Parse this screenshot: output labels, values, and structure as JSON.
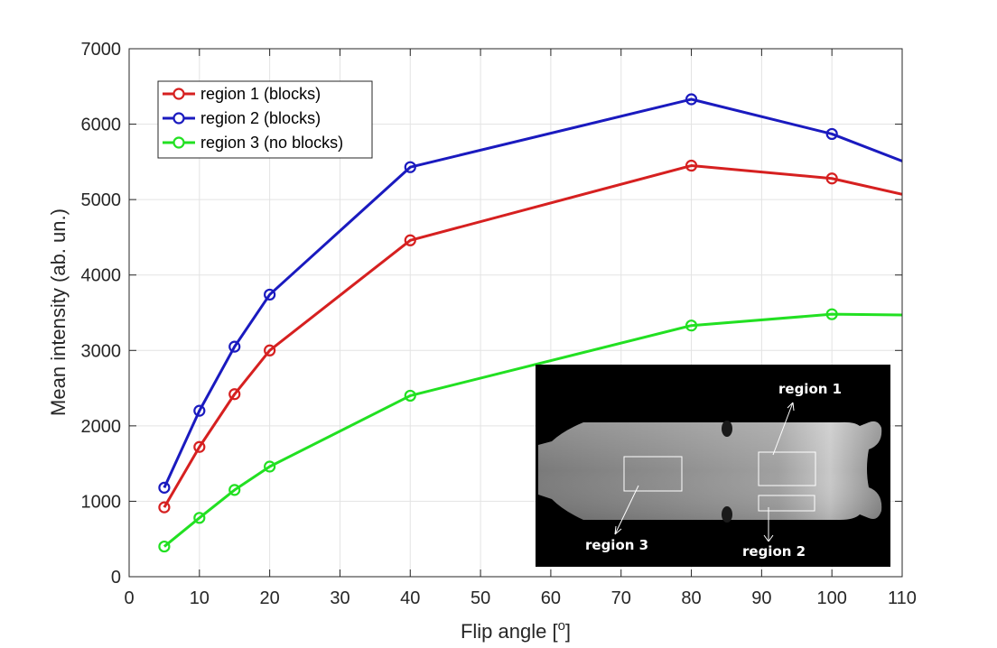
{
  "chart_data": {
    "type": "line",
    "xlabel_main": "Flip angle [",
    "xlabel_sup": "o",
    "xlabel_end": "]",
    "ylabel": "Mean intensity (ab. un.)",
    "xlim": [
      0,
      110
    ],
    "ylim": [
      0,
      7000
    ],
    "xticks": [
      0,
      10,
      20,
      30,
      40,
      50,
      60,
      70,
      80,
      90,
      100,
      110
    ],
    "yticks": [
      0,
      1000,
      2000,
      3000,
      4000,
      5000,
      6000,
      7000
    ],
    "grid": true,
    "legend_position": "top-left",
    "series": [
      {
        "name": "region 1 (blocks)",
        "color": "#d62020",
        "x": [
          5,
          10,
          15,
          20,
          40,
          80,
          100,
          110
        ],
        "y": [
          920,
          1720,
          2420,
          3000,
          4460,
          5450,
          5280,
          5070
        ],
        "markers": [
          true,
          true,
          true,
          true,
          true,
          true,
          true,
          false
        ]
      },
      {
        "name": "region 2 (blocks)",
        "color": "#1a1abf",
        "x": [
          5,
          10,
          15,
          20,
          40,
          80,
          100,
          110
        ],
        "y": [
          1180,
          2200,
          3050,
          3740,
          5430,
          6330,
          5870,
          5510
        ],
        "markers": [
          true,
          true,
          true,
          true,
          true,
          true,
          true,
          false
        ]
      },
      {
        "name": "region 3 (no blocks)",
        "color": "#22e022",
        "x": [
          5,
          10,
          15,
          20,
          40,
          80,
          100,
          110
        ],
        "y": [
          400,
          780,
          1150,
          1460,
          2400,
          3330,
          3480,
          3470
        ],
        "markers": [
          true,
          true,
          true,
          true,
          true,
          true,
          true,
          false
        ]
      }
    ],
    "inset_image": {
      "annotations": [
        "region 1",
        "region 2",
        "region 3"
      ]
    }
  }
}
